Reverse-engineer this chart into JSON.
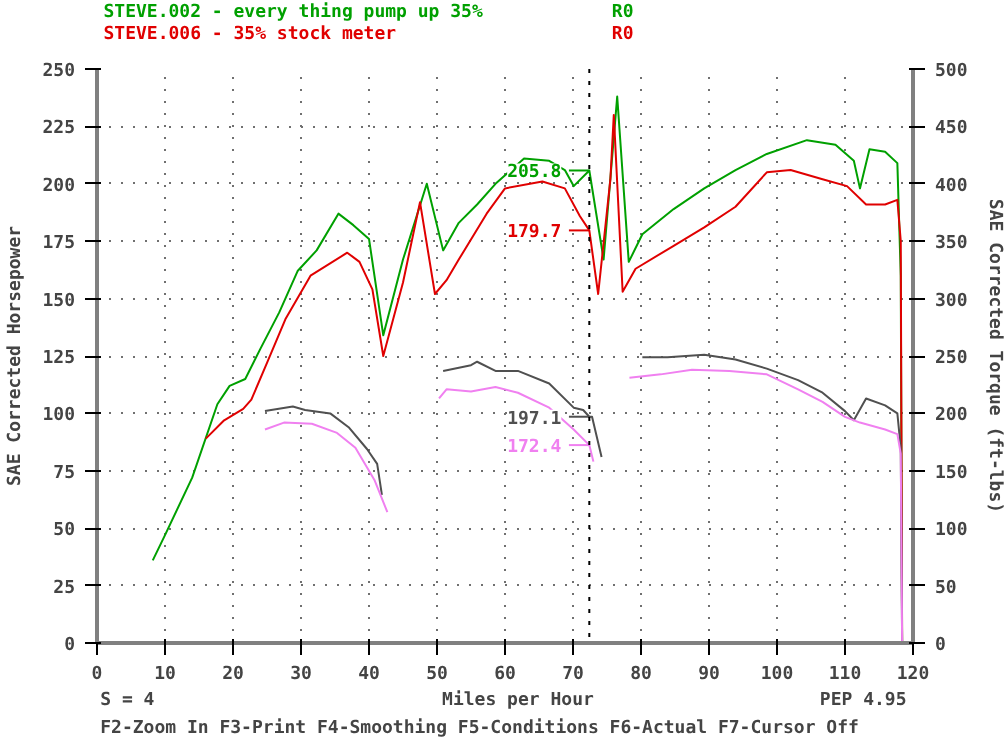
{
  "chart_data": {
    "type": "line",
    "xlabel": "Miles per Hour",
    "ylabel": "SAE Corrected Horsepower",
    "y2label": "SAE Corrected Torque (ft-lbs)",
    "xlim": [
      0,
      120
    ],
    "xticks": [
      0,
      10,
      20,
      30,
      40,
      50,
      60,
      70,
      80,
      90,
      100,
      110,
      120
    ],
    "ylim": [
      0,
      250
    ],
    "yticks": [
      0,
      25,
      50,
      75,
      100,
      125,
      150,
      175,
      200,
      225,
      250
    ],
    "y2lim": [
      0,
      500
    ],
    "y2ticks": [
      0,
      50,
      100,
      150,
      200,
      250,
      300,
      350,
      400,
      450,
      500
    ],
    "grid": true,
    "legend": "top",
    "line_style": "solid",
    "marker": "none",
    "series": [
      {
        "name": "STEVE.002 - every thing   pump up 35%",
        "color": "#00a000",
        "x": [
          8.2,
          10,
          14,
          17.7,
          19.5,
          21.8,
          24,
          26.8,
          29.5,
          32.3,
          35.5,
          37.7,
          40,
          42.1,
          45,
          48.5,
          50.9,
          53.2,
          55.9,
          58.6,
          62.8,
          66.5,
          68.8,
          70.1,
          72.4,
          74.5,
          76.5,
          78.2,
          80.2,
          84.8,
          89.3,
          93.9,
          98.5,
          104.4,
          108.6,
          111.3,
          112.2,
          113.6,
          115.9,
          117.7,
          118.2,
          118.4
        ],
        "values": [
          36,
          47,
          72,
          104,
          112,
          115,
          128,
          144,
          162,
          171,
          187,
          182,
          176,
          134,
          167,
          200,
          171,
          183,
          191,
          200,
          211,
          210,
          206,
          199,
          205.8,
          167,
          238,
          166,
          178,
          189,
          198,
          206,
          213,
          219,
          217,
          210,
          198,
          215,
          214,
          209,
          160,
          0
        ],
        "value_labels": [
          null,
          null,
          null,
          null,
          null,
          null,
          null,
          null,
          null,
          null,
          null,
          null,
          null,
          null,
          null,
          null,
          null,
          null,
          null,
          null,
          null,
          null,
          null,
          null,
          "205.8",
          null,
          null,
          null,
          null,
          null,
          null,
          null,
          null,
          null,
          null,
          null,
          null,
          null,
          null,
          null,
          null,
          null
        ]
      },
      {
        "name": "STEVE.006 - 35%  stock meter",
        "color": "#e00000",
        "x": [
          16,
          18.7,
          21.5,
          22.7,
          25,
          27.7,
          31.4,
          36.8,
          38.6,
          40.5,
          42.1,
          45,
          47.5,
          49.7,
          51.4,
          53.2,
          57.3,
          60,
          65.5,
          68.8,
          71,
          72.4,
          73.7,
          75.5,
          76,
          77.3,
          79.2,
          84.8,
          89.3,
          93.9,
          98.5,
          102,
          106.7,
          110.3,
          113.1,
          115.9,
          117.7,
          118.2,
          118.4
        ],
        "values": [
          89,
          97,
          102,
          106,
          122,
          141,
          160,
          170,
          166,
          154,
          125,
          157,
          192,
          152,
          158,
          167,
          187,
          198,
          201,
          198,
          186,
          179.7,
          152,
          202,
          230,
          153,
          163,
          173,
          181,
          190,
          205,
          206,
          202,
          199,
          191,
          191,
          193,
          175,
          0
        ],
        "value_labels": [
          null,
          null,
          null,
          null,
          null,
          null,
          null,
          null,
          null,
          null,
          null,
          null,
          null,
          null,
          null,
          null,
          null,
          null,
          null,
          null,
          null,
          "179.7",
          null,
          null,
          null,
          null,
          null,
          null,
          null,
          null,
          null,
          null,
          null,
          null,
          null,
          null,
          null,
          null,
          null
        ]
      },
      {
        "color": "#505050",
        "axis": "y2",
        "x": [
          24.7,
          28.8,
          30.6,
          34.3,
          37,
          39.7,
          41.2,
          41.9,
          42.5,
          50.9,
          55,
          55.9,
          58.6,
          61.9,
          66.5,
          70.1,
          71.5,
          72.4,
          72.8,
          74.2,
          77,
          80.2,
          83.9,
          89.3,
          93.9,
          98.5,
          103.1,
          106.7,
          110,
          111.3,
          113.1,
          115.9,
          117.7,
          118.2,
          118.4
        ],
        "values": [
          202,
          206,
          203,
          200,
          188,
          169,
          156,
          129,
          null,
          237,
          242,
          245,
          237,
          237,
          226,
          205,
          203,
          197.1,
          197,
          162,
          null,
          249,
          249,
          251,
          247,
          239,
          229,
          218,
          202,
          194,
          213,
          207,
          200,
          170,
          0
        ],
        "value_labels": [
          null,
          null,
          null,
          null,
          null,
          null,
          null,
          null,
          null,
          null,
          null,
          null,
          null,
          null,
          null,
          null,
          null,
          "197.1",
          null,
          null,
          null,
          null,
          null,
          null,
          null,
          null,
          null,
          null,
          null,
          null,
          null,
          null,
          null,
          null,
          null
        ]
      },
      {
        "color": "#f080f0",
        "axis": "y2",
        "x": [
          24.7,
          27.5,
          31.6,
          35.3,
          38,
          40.8,
          42.7,
          45,
          50.3,
          51.4,
          55,
          58.6,
          61.9,
          66.5,
          70.1,
          72.4,
          73,
          75,
          78.3,
          82.9,
          87.5,
          93,
          98.5,
          103.1,
          106.7,
          110,
          112.2,
          115.9,
          117.7,
          118.2,
          118.4
        ],
        "values": [
          186,
          192,
          191,
          183,
          170,
          142,
          114,
          null,
          213,
          221,
          219,
          223,
          218,
          205,
          186,
          172.4,
          158,
          null,
          231,
          234,
          238,
          237,
          234,
          221,
          210,
          197,
          192,
          186,
          182,
          165,
          0
        ],
        "value_labels": [
          null,
          null,
          null,
          null,
          null,
          null,
          null,
          null,
          null,
          null,
          null,
          null,
          null,
          null,
          null,
          "172.4",
          null,
          null,
          null,
          null,
          null,
          null,
          null,
          null,
          null,
          null,
          null,
          null,
          null,
          null,
          null
        ]
      }
    ],
    "ref_lines": [
      {
        "axis": "x",
        "value": 72.4,
        "color": "#000000",
        "line_style": "dotted"
      }
    ],
    "annotations": [
      "R0",
      "R0",
      "S = 4",
      "PEP 4.95",
      "F2-Zoom In  F3-Print  F4-Smoothing  F5-Conditions  F6-Actual  F7-Cursor Off"
    ]
  }
}
